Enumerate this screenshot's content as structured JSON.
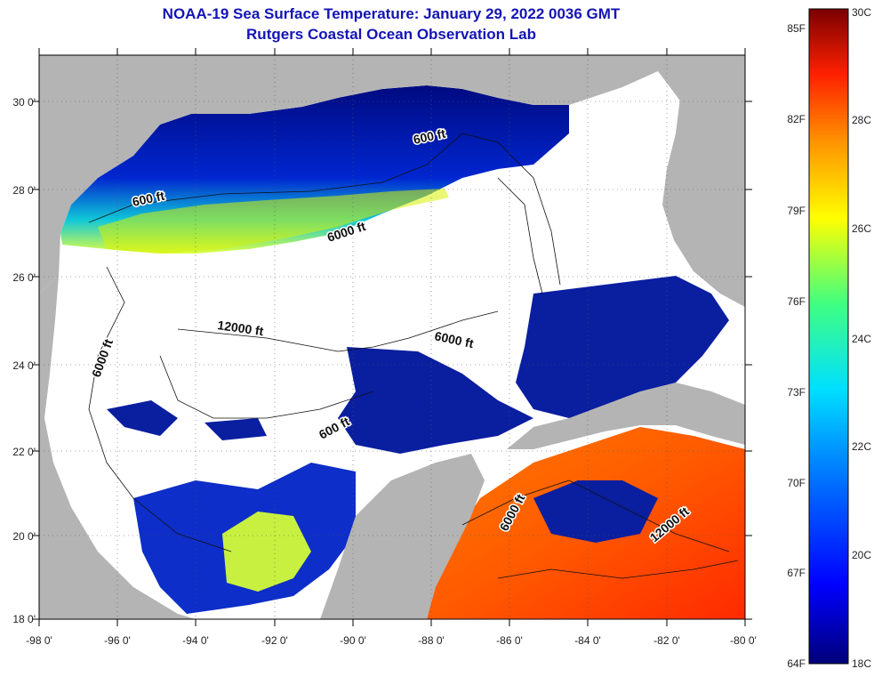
{
  "header": {
    "title_line1": "NOAA-19 Sea Surface Temperature:  January 29, 2022 0036 GMT",
    "title_line2": "Rutgers Coastal Ocean Observation Lab"
  },
  "map": {
    "lon_labels": [
      "-98 0'",
      "-96 0'",
      "-94 0'",
      "-92 0'",
      "-90 0'",
      "-88 0'",
      "-86 0'",
      "-84 0'",
      "-82 0'",
      "-80 0'"
    ],
    "lat_labels": [
      "30 0'",
      "28 0'",
      "26 0'",
      "24 0'",
      "22 0'",
      "20 0'",
      "18 0'"
    ],
    "contour_labels": [
      "600 ft",
      "600 ft",
      "6000 ft",
      "12000 ft",
      "6000 ft",
      "6000 ft",
      "600 ft",
      "6000 ft",
      "12000 ft"
    ],
    "colors": {
      "land": "#b4b4b4",
      "no_data": "#ffffff",
      "cold": "#00107a",
      "warm": "#ff4a00"
    }
  },
  "colorbar": {
    "fahrenheit_labels": [
      "85F",
      "82F",
      "79F",
      "76F",
      "73F",
      "70F",
      "67F",
      "64F"
    ],
    "celsius_labels": [
      "30C",
      "28C",
      "26C",
      "24C",
      "22C",
      "20C",
      "18C"
    ]
  }
}
